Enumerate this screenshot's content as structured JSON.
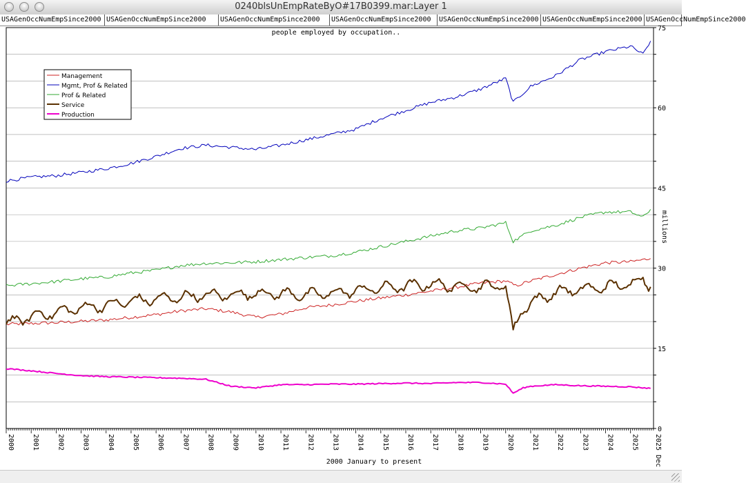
{
  "window": {
    "title": "0240blsUnEmpRateByO#17B0399.mar:Layer 1",
    "tabs": [
      "USAGenOccNumEmpSince2000",
      "USAGenOccNumEmpSince2000",
      "USAGenOccNumEmpSince2000",
      "USAGenOccNumEmpSince2000",
      "USAGenOccNumEmpSince2000",
      "USAGenOccNumEmpSince2000",
      "USAGenOccNumEmpSince2000"
    ]
  },
  "colors": {
    "Management": "#cc2222",
    "Mgmt, Prof & Related": "#0000bb",
    "Prof & Related": "#33aa33",
    "Service": "#5a3000",
    "Production": "#ee00cc"
  },
  "chart_data": {
    "type": "line",
    "title": "people employed by occupation..",
    "xlabel": "2000 January to present",
    "ylabel": "millions",
    "xlim": [
      2000,
      2025.92
    ],
    "ylim": [
      0,
      75
    ],
    "y_ticks": [
      0,
      15,
      30,
      45,
      60,
      75
    ],
    "x_tick_labels": [
      "2000",
      "2001",
      "2002",
      "2003",
      "2004",
      "2005",
      "2006",
      "2007",
      "2008",
      "2009",
      "2010",
      "2011",
      "2012",
      "2013",
      "2014",
      "2015",
      "2016",
      "2017",
      "2018",
      "2019",
      "2020",
      "2021",
      "2022",
      "2023",
      "2024",
      "2025",
      "2025 Dec"
    ],
    "grid": "horizontal",
    "legend_position": "top-left",
    "series": [
      {
        "name": "Management",
        "points": [
          [
            2000,
            19.5
          ],
          [
            2002,
            19.8
          ],
          [
            2004,
            20.3
          ],
          [
            2006,
            21.3
          ],
          [
            2007,
            22.0
          ],
          [
            2008,
            22.4
          ],
          [
            2009,
            21.8
          ],
          [
            2010,
            20.8
          ],
          [
            2011,
            21.4
          ],
          [
            2012,
            22.6
          ],
          [
            2013,
            23.1
          ],
          [
            2014,
            23.8
          ],
          [
            2015,
            24.4
          ],
          [
            2016,
            25.0
          ],
          [
            2017,
            25.7
          ],
          [
            2018,
            26.4
          ],
          [
            2019,
            27.2
          ],
          [
            2020,
            27.6
          ],
          [
            2020.4,
            26.7
          ],
          [
            2021,
            27.6
          ],
          [
            2022,
            28.8
          ],
          [
            2023,
            30.0
          ],
          [
            2024,
            31.0
          ],
          [
            2025,
            31.2
          ],
          [
            2025.8,
            31.8
          ]
        ]
      },
      {
        "name": "Mgmt, Prof & Related",
        "points": [
          [
            2000,
            46.3
          ],
          [
            2001,
            47.0
          ],
          [
            2002,
            47.3
          ],
          [
            2003,
            47.9
          ],
          [
            2004,
            48.6
          ],
          [
            2005,
            49.6
          ],
          [
            2006,
            50.9
          ],
          [
            2007,
            52.4
          ],
          [
            2008,
            53.0
          ],
          [
            2009,
            52.6
          ],
          [
            2010,
            52.2
          ],
          [
            2011,
            53.0
          ],
          [
            2012,
            54.0
          ],
          [
            2013,
            55.0
          ],
          [
            2014,
            56.0
          ],
          [
            2015,
            58.0
          ],
          [
            2016,
            59.5
          ],
          [
            2017,
            61.0
          ],
          [
            2018,
            62.0
          ],
          [
            2019,
            63.5
          ],
          [
            2020,
            65.5
          ],
          [
            2020.3,
            61.0
          ],
          [
            2021,
            64.0
          ],
          [
            2022,
            66.0
          ],
          [
            2023,
            69.0
          ],
          [
            2024,
            70.5
          ],
          [
            2025,
            71.5
          ],
          [
            2025.5,
            70.0
          ],
          [
            2025.8,
            72.5
          ]
        ]
      },
      {
        "name": "Prof & Related",
        "points": [
          [
            2000,
            26.7
          ],
          [
            2001,
            27.1
          ],
          [
            2002,
            27.5
          ],
          [
            2003,
            28.0
          ],
          [
            2004,
            28.3
          ],
          [
            2005,
            29.1
          ],
          [
            2006,
            29.6
          ],
          [
            2007,
            30.5
          ],
          [
            2008,
            30.9
          ],
          [
            2009,
            31.0
          ],
          [
            2010,
            31.2
          ],
          [
            2011,
            31.6
          ],
          [
            2012,
            32.0
          ],
          [
            2013,
            32.3
          ],
          [
            2014,
            33.0
          ],
          [
            2015,
            34.0
          ],
          [
            2016,
            35.0
          ],
          [
            2017,
            36.0
          ],
          [
            2018,
            37.0
          ],
          [
            2019,
            37.5
          ],
          [
            2020,
            38.5
          ],
          [
            2020.3,
            35.0
          ],
          [
            2021,
            37.0
          ],
          [
            2022,
            38.0
          ],
          [
            2023,
            39.5
          ],
          [
            2024,
            40.5
          ],
          [
            2025,
            40.5
          ],
          [
            2025.5,
            39.5
          ],
          [
            2025.8,
            41.0
          ]
        ]
      },
      {
        "name": "Service",
        "points": [
          [
            2000,
            19.6
          ],
          [
            2001,
            21.0
          ],
          [
            2002,
            21.7
          ],
          [
            2003,
            22.6
          ],
          [
            2004,
            23.0
          ],
          [
            2005,
            23.9
          ],
          [
            2006,
            24.2
          ],
          [
            2007,
            24.6
          ],
          [
            2008,
            24.9
          ],
          [
            2009,
            25.0
          ],
          [
            2010,
            25.3
          ],
          [
            2011,
            25.2
          ],
          [
            2012,
            25.0
          ],
          [
            2013,
            25.3
          ],
          [
            2014,
            25.8
          ],
          [
            2015,
            26.3
          ],
          [
            2016,
            26.6
          ],
          [
            2017,
            27.0
          ],
          [
            2018,
            26.6
          ],
          [
            2019,
            26.5
          ],
          [
            2020,
            26.8
          ],
          [
            2020.3,
            17.8
          ],
          [
            2020.6,
            22.0
          ],
          [
            2021,
            23.5
          ],
          [
            2022,
            25.5
          ],
          [
            2023,
            26.0
          ],
          [
            2024,
            26.5
          ],
          [
            2025,
            27.0
          ],
          [
            2025.5,
            28.0
          ],
          [
            2025.8,
            26.5
          ]
        ]
      },
      {
        "name": "Production",
        "points": [
          [
            2000,
            11.2
          ],
          [
            2001,
            10.8
          ],
          [
            2002,
            10.3
          ],
          [
            2003,
            9.9
          ],
          [
            2004,
            9.7
          ],
          [
            2005,
            9.6
          ],
          [
            2006,
            9.5
          ],
          [
            2007,
            9.4
          ],
          [
            2008,
            9.2
          ],
          [
            2009,
            7.9
          ],
          [
            2010,
            7.6
          ],
          [
            2011,
            8.2
          ],
          [
            2012,
            8.2
          ],
          [
            2013,
            8.3
          ],
          [
            2014,
            8.3
          ],
          [
            2015,
            8.4
          ],
          [
            2016,
            8.5
          ],
          [
            2017,
            8.4
          ],
          [
            2018,
            8.6
          ],
          [
            2019,
            8.6
          ],
          [
            2020,
            8.3
          ],
          [
            2020.3,
            6.6
          ],
          [
            2020.7,
            7.6
          ],
          [
            2021,
            7.9
          ],
          [
            2022,
            8.2
          ],
          [
            2023,
            8.0
          ],
          [
            2024,
            7.9
          ],
          [
            2025,
            7.8
          ],
          [
            2025.8,
            7.5
          ]
        ]
      }
    ]
  }
}
